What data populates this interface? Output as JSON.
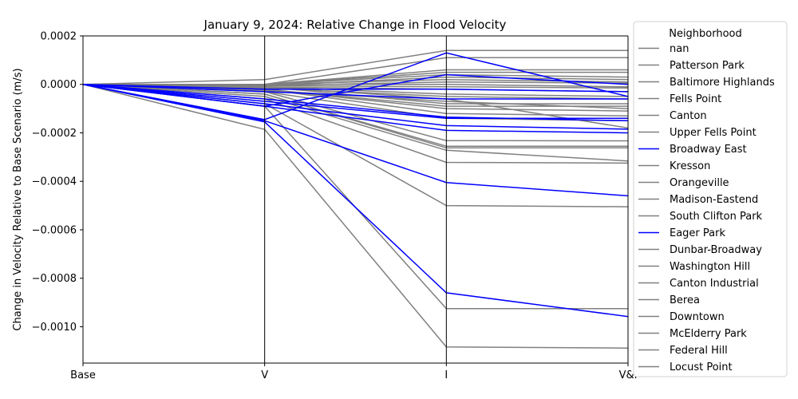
{
  "chart_data": {
    "type": "line",
    "subtype": "parallel-coordinates",
    "title": "January 9, 2024: Relative Change in Flood Velocity",
    "ylabel": "Change in Velocity Relative to Base Scenario (m/s)",
    "xlabel": "",
    "categories": [
      "Base",
      "V",
      "I",
      "V&I"
    ],
    "ylim": [
      -0.00115,
      0.0002
    ],
    "yticks": [
      0.0002,
      0.0,
      -0.0002,
      -0.0004,
      -0.0006,
      -0.0008,
      -0.001
    ],
    "ytick_labels": [
      "0.0002",
      "0.0000",
      "−0.0002",
      "−0.0004",
      "−0.0006",
      "−0.0008",
      "−0.0010"
    ],
    "grid": false,
    "legend": {
      "title": "Neighborhood",
      "placement": "outside-right",
      "entries": [
        {
          "name": "nan",
          "color": "#808080"
        },
        {
          "name": "Patterson Park",
          "color": "#808080"
        },
        {
          "name": "Baltimore Highlands",
          "color": "#808080"
        },
        {
          "name": "Fells Point",
          "color": "#808080"
        },
        {
          "name": "Canton",
          "color": "#808080"
        },
        {
          "name": "Upper Fells Point",
          "color": "#808080"
        },
        {
          "name": "Broadway East",
          "color": "#0000ff"
        },
        {
          "name": "Kresson",
          "color": "#808080"
        },
        {
          "name": "Orangeville",
          "color": "#808080"
        },
        {
          "name": "Madison-Eastend",
          "color": "#808080"
        },
        {
          "name": "South Clifton Park",
          "color": "#808080"
        },
        {
          "name": "Eager Park",
          "color": "#0000ff"
        },
        {
          "name": "Dunbar-Broadway",
          "color": "#808080"
        },
        {
          "name": "Washington Hill",
          "color": "#808080"
        },
        {
          "name": "Canton Industrial",
          "color": "#808080"
        },
        {
          "name": "Berea",
          "color": "#808080"
        },
        {
          "name": "Downtown",
          "color": "#808080"
        },
        {
          "name": "McElderry Park",
          "color": "#808080"
        },
        {
          "name": "Federal Hill",
          "color": "#808080"
        },
        {
          "name": "Locust Point",
          "color": "#808080"
        }
      ]
    },
    "colors": {
      "gray": "#808080",
      "blue": "#0000ff",
      "axis": "#000000"
    },
    "series": [
      {
        "color": "#808080",
        "values": [
          0,
          -0.000186,
          -0.001083,
          -0.001088
        ]
      },
      {
        "color": "#808080",
        "values": [
          0,
          -9e-05,
          -0.000925,
          -0.000925
        ]
      },
      {
        "color": "#808080",
        "values": [
          0,
          -8e-05,
          -0.0005,
          -0.000505
        ]
      },
      {
        "color": "#808080",
        "values": [
          0,
          -6e-05,
          -0.000322,
          -0.000325
        ]
      },
      {
        "color": "#808080",
        "values": [
          0,
          -5e-05,
          -0.000272,
          -0.000316
        ]
      },
      {
        "color": "#808080",
        "values": [
          0,
          -4e-05,
          -0.000262,
          -0.000262
        ]
      },
      {
        "color": "#808080",
        "values": [
          0,
          -4e-05,
          -0.000255,
          -0.000255
        ]
      },
      {
        "color": "#808080",
        "values": [
          0,
          -3e-05,
          -0.000232,
          -0.000233
        ]
      },
      {
        "color": "#808080",
        "values": [
          0,
          -3e-05,
          -0.00014,
          -0.00015
        ]
      },
      {
        "color": "#808080",
        "values": [
          0,
          -2e-05,
          -0.00012,
          -0.00013
        ]
      },
      {
        "color": "#808080",
        "values": [
          0,
          -2e-05,
          -0.0001,
          -0.00011
        ]
      },
      {
        "color": "#808080",
        "values": [
          0,
          -2e-05,
          -9e-05,
          -9e-05
        ]
      },
      {
        "color": "#808080",
        "values": [
          0,
          -1e-05,
          -8e-05,
          -8e-05
        ]
      },
      {
        "color": "#808080",
        "values": [
          0,
          -1e-05,
          -6e-05,
          -0.00018
        ]
      },
      {
        "color": "#808080",
        "values": [
          0,
          -1e-05,
          -4e-05,
          -5e-05
        ]
      },
      {
        "color": "#808080",
        "values": [
          0,
          -1e-05,
          -2e-05,
          -3e-05
        ]
      },
      {
        "color": "#808080",
        "values": [
          0,
          0.0,
          0.0,
          -1e-05
        ]
      },
      {
        "color": "#808080",
        "values": [
          0,
          0.0,
          2e-05,
          1e-05
        ]
      },
      {
        "color": "#808080",
        "values": [
          0,
          0.0,
          4e-05,
          3e-05
        ]
      },
      {
        "color": "#808080",
        "values": [
          0,
          0.0,
          5e-05,
          5e-05
        ]
      },
      {
        "color": "#808080",
        "values": [
          0,
          0.0,
          6e-05,
          6e-05
        ]
      },
      {
        "color": "#808080",
        "values": [
          0,
          0.0,
          0.00011,
          0.00011
        ]
      },
      {
        "color": "#808080",
        "values": [
          0,
          2e-05,
          0.00014,
          0.00014
        ]
      },
      {
        "color": "#808080",
        "values": [
          0,
          -5e-06,
          -1e-05,
          -1.5e-05
        ]
      },
      {
        "color": "#808080",
        "values": [
          0,
          -5e-06,
          1e-05,
          5e-06
        ]
      },
      {
        "color": "#808080",
        "values": [
          0,
          -5e-06,
          3e-05,
          2e-05
        ]
      },
      {
        "color": "#808080",
        "values": [
          0,
          -1.5e-05,
          -5e-05,
          -6e-05
        ]
      },
      {
        "color": "#808080",
        "values": [
          0,
          -2.5e-05,
          -7e-05,
          -0.0001
        ]
      },
      {
        "color": "#0000ff",
        "values": [
          0,
          -0.000155,
          -0.00086,
          -0.000958
        ]
      },
      {
        "color": "#0000ff",
        "values": [
          0,
          -0.00015,
          -0.000405,
          -0.00046
        ]
      },
      {
        "color": "#0000ff",
        "values": [
          0,
          -0.000145,
          0.00013,
          -5e-05
        ]
      },
      {
        "color": "#0000ff",
        "values": [
          0,
          -9e-05,
          4e-05,
          0.0
        ]
      },
      {
        "color": "#0000ff",
        "values": [
          0,
          -9e-05,
          -0.00019,
          -0.0002
        ]
      },
      {
        "color": "#0000ff",
        "values": [
          0,
          -8e-05,
          -0.00017,
          -0.000185
        ]
      },
      {
        "color": "#0000ff",
        "values": [
          0,
          -7e-05,
          -0.00014,
          -0.00014
        ]
      },
      {
        "color": "#0000ff",
        "values": [
          0,
          -6e-05,
          -0.000135,
          -0.00015
        ]
      },
      {
        "color": "#0000ff",
        "values": [
          0,
          -3e-05,
          -6e-05,
          -6e-05
        ]
      },
      {
        "color": "#0000ff",
        "values": [
          0,
          -2e-05,
          -2e-05,
          -3e-05
        ]
      }
    ]
  }
}
